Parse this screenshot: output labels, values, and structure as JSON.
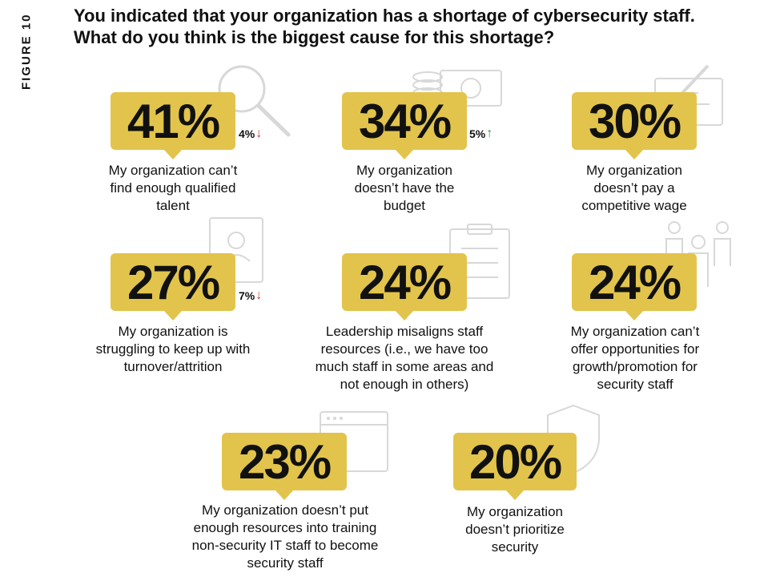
{
  "figure_label": "FIGURE 10",
  "title": "You indicated that your organization has a shortage of cybersecurity staff. What do you think is the biggest cause for this shortage?",
  "colors": {
    "badge": "#e2c44c",
    "down": "#d03a2b",
    "up": "#2e9a3a"
  },
  "chart_data": {
    "type": "table",
    "title": "You indicated that your organization has a shortage of cybersecurity staff. What do you think is the biggest cause for this shortage?",
    "items": [
      {
        "value": 41,
        "display": "41%",
        "label": "My organization can’t find enough qualified talent",
        "change": "4%",
        "direction": "down",
        "icon": "magnifier-icon"
      },
      {
        "value": 34,
        "display": "34%",
        "label": "My organization doesn’t have the budget",
        "change": "5%",
        "direction": "up",
        "icon": "money-icon"
      },
      {
        "value": 30,
        "display": "30%",
        "label": "My organization doesn’t pay a competitive wage",
        "change": "",
        "direction": "",
        "icon": "document-pen-icon"
      },
      {
        "value": 27,
        "display": "27%",
        "label": "My organization is struggling to keep up with turnover/attrition",
        "change": "7%",
        "direction": "down",
        "icon": "id-badge-icon"
      },
      {
        "value": 24,
        "display": "24%",
        "label": "Leadership misaligns staff resources (i.e., we have too much staff in some areas and not enough in others)",
        "change": "",
        "direction": "",
        "icon": "clipboard-icon"
      },
      {
        "value": 24,
        "display": "24%",
        "label": "My organization can’t offer opportunities for growth/promotion for security staff",
        "change": "",
        "direction": "",
        "icon": "people-icon"
      },
      {
        "value": 23,
        "display": "23%",
        "label": "My organization doesn’t put enough resources into training non-security IT staff to become security staff",
        "change": "",
        "direction": "",
        "icon": "browser-window-icon"
      },
      {
        "value": 20,
        "display": "20%",
        "label": "My organization doesn’t prioritize security",
        "change": "",
        "direction": "",
        "icon": "shield-icon"
      }
    ]
  }
}
